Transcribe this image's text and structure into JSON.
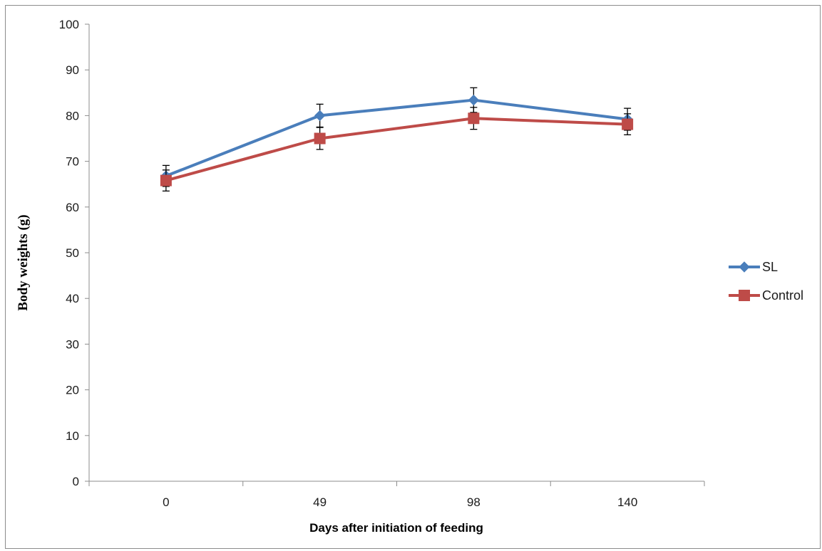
{
  "chart_data": {
    "type": "line",
    "title": "",
    "xlabel": "Days after initiation of feeding",
    "ylabel": "Body weights (g)",
    "x": [
      0,
      49,
      98,
      140
    ],
    "categories": [
      "0",
      "49",
      "98",
      "140"
    ],
    "ylim": [
      0,
      100
    ],
    "yticks": [
      0,
      10,
      20,
      30,
      40,
      50,
      60,
      70,
      80,
      90,
      100
    ],
    "ytick_labels": [
      "0",
      "10",
      "20",
      "30",
      "40",
      "50",
      "60",
      "70",
      "80",
      "90",
      "100"
    ],
    "grid": false,
    "legend_position": "right",
    "series": [
      {
        "name": "SL",
        "values": [
          66.8,
          80.0,
          83.4,
          79.2
        ],
        "errors": [
          2.3,
          2.5,
          2.7,
          2.4
        ],
        "color": "#4a7ebb",
        "marker": "diamond"
      },
      {
        "name": "Control",
        "values": [
          65.8,
          75.0,
          79.4,
          78.1
        ],
        "errors": [
          2.3,
          2.4,
          2.4,
          2.3
        ],
        "color": "#be4b48",
        "marker": "square"
      }
    ]
  }
}
